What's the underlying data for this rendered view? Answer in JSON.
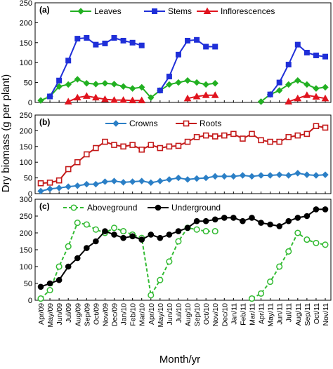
{
  "figure": {
    "ylabel": "Dry biomass (g per plant)",
    "xlabel": "Month/yr"
  },
  "x_dates": [
    "Apr/09",
    "May/09",
    "Jun/09",
    "Jul/09",
    "Aug/09",
    "Sep/09",
    "Oct/09",
    "Nov/09",
    "Dec/09",
    "Jan/10",
    "Feb/10",
    "Mar/10",
    "Apr/10",
    "May/10",
    "Jun/10",
    "Jul/10",
    "Aug/10",
    "Sep/10",
    "Oct/10",
    "Nov/10",
    "Dec/10",
    "Jan/11",
    "Feb/11",
    "Mar/11",
    "Apr/11",
    "May/11",
    "Jun/11",
    "Jul/11",
    "Aug/11",
    "Sep/11",
    "Oct/11",
    "Nov/11"
  ],
  "chart_data": [
    {
      "type": "line",
      "panel_label": "(a)",
      "ylim": [
        0,
        250
      ],
      "yticks": [
        0,
        50,
        100,
        150,
        200,
        250
      ],
      "legend": "top",
      "series": [
        {
          "name": "Leaves",
          "color": "#22b022",
          "marker": "diamond",
          "points": [
            {
              "x": "Apr/09",
              "y": 5
            },
            {
              "x": "May/09",
              "y": 15
            },
            {
              "x": "Jun/09",
              "y": 40
            },
            {
              "x": "Jul/09",
              "y": 45
            },
            {
              "x": "Aug/09",
              "y": 58
            },
            {
              "x": "Sep/09",
              "y": 48
            },
            {
              "x": "Oct/09",
              "y": 46
            },
            {
              "x": "Nov/09",
              "y": 48
            },
            {
              "x": "Dec/09",
              "y": 46
            },
            {
              "x": "Jan/10",
              "y": 40
            },
            {
              "x": "Feb/10",
              "y": 35
            },
            {
              "x": "Mar/10",
              "y": 38
            },
            {
              "x": "Apr/10",
              "y": 12
            },
            {
              "x": "May/10",
              "y": 30
            },
            {
              "x": "Jun/10",
              "y": 45
            },
            {
              "x": "Jul/10",
              "y": 50
            },
            {
              "x": "Aug/10",
              "y": 55
            },
            {
              "x": "Sep/10",
              "y": 50
            },
            {
              "x": "Oct/10",
              "y": 45
            },
            {
              "x": "Nov/10",
              "y": 48
            },
            {
              "x": "Apr/11",
              "y": 2
            },
            {
              "x": "May/11",
              "y": 20
            },
            {
              "x": "Jun/11",
              "y": 30
            },
            {
              "x": "Jul/11",
              "y": 45
            },
            {
              "x": "Aug/11",
              "y": 55
            },
            {
              "x": "Sep/11",
              "y": 45
            },
            {
              "x": "Oct/11",
              "y": 35
            },
            {
              "x": "Nov/11",
              "y": 38
            }
          ]
        },
        {
          "name": "Stems",
          "color": "#1f2fd8",
          "marker": "square",
          "points": [
            {
              "x": "May/09",
              "y": 15
            },
            {
              "x": "Jun/09",
              "y": 55
            },
            {
              "x": "Jul/09",
              "y": 105
            },
            {
              "x": "Aug/09",
              "y": 160
            },
            {
              "x": "Sep/09",
              "y": 162
            },
            {
              "x": "Oct/09",
              "y": 145
            },
            {
              "x": "Nov/09",
              "y": 148
            },
            {
              "x": "Dec/09",
              "y": 162
            },
            {
              "x": "Jan/10",
              "y": 155
            },
            {
              "x": "Feb/10",
              "y": 150
            },
            {
              "x": "Mar/10",
              "y": 143
            },
            {
              "x": "May/10",
              "y": 30
            },
            {
              "x": "Jun/10",
              "y": 65
            },
            {
              "x": "Jul/10",
              "y": 120
            },
            {
              "x": "Aug/10",
              "y": 155
            },
            {
              "x": "Sep/10",
              "y": 157
            },
            {
              "x": "Oct/10",
              "y": 140
            },
            {
              "x": "Nov/10",
              "y": 140
            },
            {
              "x": "May/11",
              "y": 20
            },
            {
              "x": "Jun/11",
              "y": 50
            },
            {
              "x": "Jul/11",
              "y": 95
            },
            {
              "x": "Aug/11",
              "y": 145
            },
            {
              "x": "Sep/11",
              "y": 125
            },
            {
              "x": "Oct/11",
              "y": 118
            },
            {
              "x": "Nov/11",
              "y": 115
            }
          ]
        },
        {
          "name": "Inflorescences",
          "color": "#e0141e",
          "marker": "triangle",
          "points": [
            {
              "x": "Jul/09",
              "y": 2
            },
            {
              "x": "Aug/09",
              "y": 12
            },
            {
              "x": "Sep/09",
              "y": 16
            },
            {
              "x": "Oct/09",
              "y": 12
            },
            {
              "x": "Nov/09",
              "y": 8
            },
            {
              "x": "Dec/09",
              "y": 6
            },
            {
              "x": "Jan/10",
              "y": 6
            },
            {
              "x": "Feb/10",
              "y": 5
            },
            {
              "x": "Mar/10",
              "y": 5
            },
            {
              "x": "Aug/10",
              "y": 10
            },
            {
              "x": "Sep/10",
              "y": 15
            },
            {
              "x": "Oct/10",
              "y": 18
            },
            {
              "x": "Nov/10",
              "y": 18
            },
            {
              "x": "Jul/11",
              "y": 2
            },
            {
              "x": "Aug/11",
              "y": 10
            },
            {
              "x": "Sep/11",
              "y": 18
            },
            {
              "x": "Oct/11",
              "y": 14
            },
            {
              "x": "Nov/11",
              "y": 10
            }
          ]
        }
      ]
    },
    {
      "type": "line",
      "panel_label": "(b)",
      "ylim": [
        0,
        250
      ],
      "yticks": [
        0,
        50,
        100,
        150,
        200,
        250
      ],
      "legend": "top",
      "series": [
        {
          "name": "Crowns",
          "color": "#2b7fc6",
          "marker": "diamond",
          "points": [
            {
              "x": "Apr/09",
              "y": 8
            },
            {
              "x": "May/09",
              "y": 15
            },
            {
              "x": "Jun/09",
              "y": 18
            },
            {
              "x": "Jul/09",
              "y": 22
            },
            {
              "x": "Aug/09",
              "y": 25
            },
            {
              "x": "Sep/09",
              "y": 30
            },
            {
              "x": "Oct/09",
              "y": 30
            },
            {
              "x": "Nov/09",
              "y": 38
            },
            {
              "x": "Dec/09",
              "y": 40
            },
            {
              "x": "Jan/10",
              "y": 36
            },
            {
              "x": "Feb/10",
              "y": 38
            },
            {
              "x": "Mar/10",
              "y": 40
            },
            {
              "x": "Apr/10",
              "y": 35
            },
            {
              "x": "May/10",
              "y": 40
            },
            {
              "x": "Jun/10",
              "y": 45
            },
            {
              "x": "Jul/10",
              "y": 50
            },
            {
              "x": "Aug/10",
              "y": 45
            },
            {
              "x": "Sep/10",
              "y": 48
            },
            {
              "x": "Oct/10",
              "y": 50
            },
            {
              "x": "Nov/10",
              "y": 55
            },
            {
              "x": "Dec/10",
              "y": 55
            },
            {
              "x": "Jan/11",
              "y": 55
            },
            {
              "x": "Feb/11",
              "y": 58
            },
            {
              "x": "Mar/11",
              "y": 55
            },
            {
              "x": "Apr/11",
              "y": 58
            },
            {
              "x": "May/11",
              "y": 58
            },
            {
              "x": "Jun/11",
              "y": 60
            },
            {
              "x": "Jul/11",
              "y": 58
            },
            {
              "x": "Aug/11",
              "y": 65
            },
            {
              "x": "Sep/11",
              "y": 60
            },
            {
              "x": "Oct/11",
              "y": 58
            },
            {
              "x": "Nov/11",
              "y": 60
            }
          ]
        },
        {
          "name": "Roots",
          "color": "#c41a1a",
          "marker": "square-open",
          "points": [
            {
              "x": "Apr/09",
              "y": 33
            },
            {
              "x": "May/09",
              "y": 35
            },
            {
              "x": "Jun/09",
              "y": 42
            },
            {
              "x": "Jul/09",
              "y": 78
            },
            {
              "x": "Aug/09",
              "y": 100
            },
            {
              "x": "Sep/09",
              "y": 125
            },
            {
              "x": "Oct/09",
              "y": 145
            },
            {
              "x": "Nov/09",
              "y": 165
            },
            {
              "x": "Dec/09",
              "y": 155
            },
            {
              "x": "Jan/10",
              "y": 150
            },
            {
              "x": "Feb/10",
              "y": 155
            },
            {
              "x": "Mar/10",
              "y": 140
            },
            {
              "x": "Apr/10",
              "y": 155
            },
            {
              "x": "May/10",
              "y": 145
            },
            {
              "x": "Jun/10",
              "y": 150
            },
            {
              "x": "Jul/10",
              "y": 152
            },
            {
              "x": "Aug/10",
              "y": 165
            },
            {
              "x": "Sep/10",
              "y": 180
            },
            {
              "x": "Oct/10",
              "y": 185
            },
            {
              "x": "Nov/10",
              "y": 182
            },
            {
              "x": "Dec/10",
              "y": 185
            },
            {
              "x": "Jan/11",
              "y": 190
            },
            {
              "x": "Feb/11",
              "y": 175
            },
            {
              "x": "Mar/11",
              "y": 190
            },
            {
              "x": "Apr/11",
              "y": 170
            },
            {
              "x": "May/11",
              "y": 165
            },
            {
              "x": "Jun/11",
              "y": 165
            },
            {
              "x": "Jul/11",
              "y": 180
            },
            {
              "x": "Aug/11",
              "y": 185
            },
            {
              "x": "Sep/11",
              "y": 190
            },
            {
              "x": "Oct/11",
              "y": 215
            },
            {
              "x": "Nov/11",
              "y": 210
            }
          ]
        }
      ]
    },
    {
      "type": "line",
      "panel_label": "(c)",
      "ylim": [
        0,
        300
      ],
      "yticks": [
        0,
        50,
        100,
        150,
        200,
        250,
        300
      ],
      "legend": "top",
      "series": [
        {
          "name": "Aboveground",
          "color": "#33bb33",
          "marker": "circle-open",
          "dashed": true,
          "points": [
            {
              "x": "Apr/09",
              "y": 5
            },
            {
              "x": "May/09",
              "y": 30
            },
            {
              "x": "Jun/09",
              "y": 100
            },
            {
              "x": "Jul/09",
              "y": 160
            },
            {
              "x": "Aug/09",
              "y": 230
            },
            {
              "x": "Sep/09",
              "y": 225
            },
            {
              "x": "Oct/09",
              "y": 210
            },
            {
              "x": "Nov/09",
              "y": 200
            },
            {
              "x": "Dec/09",
              "y": 215
            },
            {
              "x": "Jan/10",
              "y": 205
            },
            {
              "x": "Feb/10",
              "y": 195
            },
            {
              "x": "Mar/10",
              "y": 185
            },
            {
              "x": "Apr/10",
              "y": 15
            },
            {
              "x": "May/10",
              "y": 60
            },
            {
              "x": "Jun/10",
              "y": 115
            },
            {
              "x": "Jul/10",
              "y": 175
            },
            {
              "x": "Aug/10",
              "y": 215
            },
            {
              "x": "Sep/10",
              "y": 210
            },
            {
              "x": "Oct/10",
              "y": 205
            },
            {
              "x": "Nov/10",
              "y": 205
            },
            {
              "x": "Mar/11",
              "y": 5
            },
            {
              "x": "Apr/11",
              "y": 20
            },
            {
              "x": "May/11",
              "y": 55
            },
            {
              "x": "Jun/11",
              "y": 100
            },
            {
              "x": "Jul/11",
              "y": 145
            },
            {
              "x": "Aug/11",
              "y": 200
            },
            {
              "x": "Sep/11",
              "y": 180
            },
            {
              "x": "Oct/11",
              "y": 170
            },
            {
              "x": "Nov/11",
              "y": 165
            }
          ]
        },
        {
          "name": "Underground",
          "color": "#000000",
          "marker": "circle",
          "points": [
            {
              "x": "Apr/09",
              "y": 40
            },
            {
              "x": "May/09",
              "y": 50
            },
            {
              "x": "Jun/09",
              "y": 60
            },
            {
              "x": "Jul/09",
              "y": 100
            },
            {
              "x": "Aug/09",
              "y": 125
            },
            {
              "x": "Sep/09",
              "y": 155
            },
            {
              "x": "Oct/09",
              "y": 175
            },
            {
              "x": "Nov/09",
              "y": 205
            },
            {
              "x": "Dec/09",
              "y": 195
            },
            {
              "x": "Jan/10",
              "y": 185
            },
            {
              "x": "Feb/10",
              "y": 190
            },
            {
              "x": "Mar/10",
              "y": 180
            },
            {
              "x": "Apr/10",
              "y": 195
            },
            {
              "x": "May/10",
              "y": 185
            },
            {
              "x": "Jun/10",
              "y": 195
            },
            {
              "x": "Jul/10",
              "y": 205
            },
            {
              "x": "Aug/10",
              "y": 215
            },
            {
              "x": "Sep/10",
              "y": 235
            },
            {
              "x": "Oct/10",
              "y": 235
            },
            {
              "x": "Nov/10",
              "y": 240
            },
            {
              "x": "Dec/10",
              "y": 245
            },
            {
              "x": "Jan/11",
              "y": 245
            },
            {
              "x": "Feb/11",
              "y": 235
            },
            {
              "x": "Mar/11",
              "y": 245
            },
            {
              "x": "Apr/11",
              "y": 230
            },
            {
              "x": "May/11",
              "y": 225
            },
            {
              "x": "Jun/11",
              "y": 220
            },
            {
              "x": "Jul/11",
              "y": 235
            },
            {
              "x": "Aug/11",
              "y": 245
            },
            {
              "x": "Sep/11",
              "y": 250
            },
            {
              "x": "Oct/11",
              "y": 270
            },
            {
              "x": "Nov/11",
              "y": 270
            }
          ]
        }
      ]
    }
  ]
}
